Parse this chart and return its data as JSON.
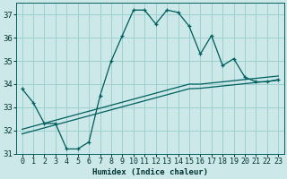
{
  "x": [
    0,
    1,
    2,
    3,
    4,
    5,
    6,
    7,
    8,
    9,
    10,
    11,
    12,
    13,
    14,
    15,
    16,
    17,
    18,
    19,
    20,
    21,
    22,
    23
  ],
  "humidex": [
    33.8,
    33.2,
    32.3,
    32.3,
    31.2,
    31.2,
    31.5,
    33.5,
    35.0,
    36.1,
    37.2,
    37.2,
    36.6,
    37.2,
    37.1,
    36.5,
    35.3,
    36.1,
    34.8,
    35.1,
    34.3,
    34.1,
    34.1,
    34.2
  ],
  "trend1": [
    32.05,
    32.18,
    32.31,
    32.44,
    32.57,
    32.7,
    32.83,
    32.96,
    33.09,
    33.22,
    33.35,
    33.48,
    33.61,
    33.74,
    33.87,
    34.0,
    34.0,
    34.05,
    34.1,
    34.15,
    34.2,
    34.25,
    34.3,
    34.35
  ],
  "trend2": [
    31.85,
    31.98,
    32.11,
    32.24,
    32.37,
    32.5,
    32.63,
    32.76,
    32.89,
    33.02,
    33.15,
    33.28,
    33.41,
    33.54,
    33.67,
    33.8,
    33.82,
    33.87,
    33.92,
    33.97,
    34.02,
    34.07,
    34.12,
    34.17
  ],
  "bg_color": "#cce8e8",
  "line_color": "#005f5f",
  "trend_color": "#005f5f",
  "grid_color": "#9dd0d0",
  "xlabel": "Humidex (Indice chaleur)",
  "ylim": [
    31,
    37.5
  ],
  "xlim": [
    -0.5,
    23.5
  ],
  "yticks": [
    31,
    32,
    33,
    34,
    35,
    36,
    37
  ],
  "xticks": [
    0,
    1,
    2,
    3,
    4,
    5,
    6,
    7,
    8,
    9,
    10,
    11,
    12,
    13,
    14,
    15,
    16,
    17,
    18,
    19,
    20,
    21,
    22,
    23
  ],
  "xlabel_fontsize": 6.5,
  "tick_fontsize": 6,
  "ytick_fontsize": 6.5
}
